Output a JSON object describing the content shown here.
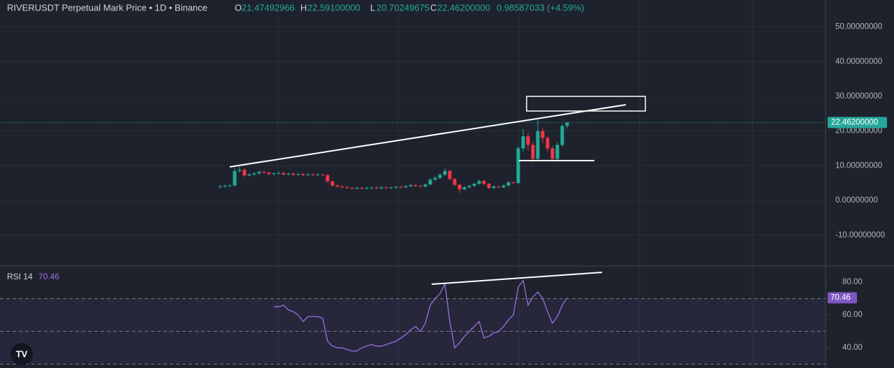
{
  "header": {
    "title": "RIVERUSDT Perpetual Mark Price • 1D • Binance",
    "o": "O",
    "open": "21.47492966",
    "h": "H",
    "high": "22.59100000",
    "l": "L",
    "low": "20.70249675",
    "c": "C",
    "close": "22.46200000",
    "change": "0.98587033 (+4.59%)"
  },
  "chart_data": [
    {
      "type": "candlestick",
      "open": [
        3.8,
        4.0,
        4.2,
        4.3,
        8.5,
        8.8,
        7.2,
        7.5,
        7.8,
        8.2,
        8.0,
        7.6,
        7.8,
        7.9,
        7.5,
        7.7,
        7.4,
        7.6,
        7.3,
        7.5,
        7.4,
        7.5,
        7.3,
        5.5,
        4.3,
        4.0,
        3.8,
        3.6,
        3.5,
        3.6,
        3.5,
        3.6,
        3.7,
        3.5,
        3.8,
        3.6,
        3.7,
        3.9,
        3.8,
        4.1,
        4.4,
        4.2,
        4.0,
        4.6,
        6.0,
        6.5,
        7.4,
        8.5,
        6.2,
        4.5,
        3.2,
        3.8,
        4.2,
        4.8,
        5.6,
        4.8,
        3.6,
        4.0,
        3.8,
        4.3,
        5.2,
        5.0,
        15.0,
        18.5,
        16.0,
        12.0,
        20.0,
        18.0,
        15.0,
        12.0,
        16.0,
        21.47
      ],
      "high": [
        4.4,
        4.6,
        4.7,
        9.5,
        10.0,
        9.3,
        7.9,
        8.2,
        8.7,
        8.5,
        8.3,
        8.1,
        8.3,
        8.2,
        8.0,
        8.0,
        7.9,
        7.9,
        7.8,
        7.8,
        7.8,
        7.7,
        7.6,
        5.8,
        4.6,
        4.3,
        4.1,
        3.9,
        3.9,
        3.9,
        3.9,
        4.0,
        4.0,
        4.1,
        4.1,
        4.0,
        4.2,
        4.2,
        4.4,
        4.7,
        4.7,
        4.5,
        4.9,
        6.4,
        7.0,
        7.9,
        9.2,
        8.8,
        6.5,
        4.8,
        4.1,
        4.5,
        5.1,
        6.0,
        5.9,
        5.0,
        4.3,
        4.2,
        4.6,
        5.6,
        5.5,
        15.6,
        20.5,
        19.5,
        17.0,
        23.3,
        21.0,
        18.6,
        15.8,
        16.8,
        22.0,
        22.59
      ],
      "low": [
        3.4,
        3.6,
        3.9,
        4.0,
        8.0,
        6.8,
        6.9,
        7.2,
        7.5,
        7.7,
        7.3,
        7.3,
        7.5,
        7.2,
        7.2,
        7.1,
        7.1,
        7.0,
        7.0,
        7.1,
        7.1,
        7.0,
        5.2,
        4.0,
        3.7,
        3.5,
        3.3,
        3.2,
        3.2,
        3.2,
        3.2,
        3.3,
        3.2,
        3.2,
        3.3,
        3.3,
        3.4,
        3.5,
        3.5,
        3.8,
        3.9,
        3.7,
        3.7,
        4.3,
        5.6,
        6.1,
        7.0,
        5.8,
        4.1,
        2.2,
        2.9,
        3.5,
        3.9,
        4.5,
        4.4,
        3.2,
        3.3,
        3.5,
        3.5,
        4.0,
        4.6,
        4.8,
        14.0,
        14.5,
        11.0,
        11.5,
        16.5,
        14.0,
        11.2,
        11.5,
        15.5,
        20.7
      ],
      "close": [
        4.0,
        4.2,
        4.3,
        8.5,
        8.8,
        7.2,
        7.5,
        7.8,
        8.2,
        8.0,
        7.6,
        7.8,
        7.9,
        7.5,
        7.7,
        7.4,
        7.6,
        7.3,
        7.5,
        7.4,
        7.5,
        7.3,
        5.5,
        4.3,
        4.0,
        3.8,
        3.6,
        3.5,
        3.6,
        3.5,
        3.6,
        3.7,
        3.5,
        3.8,
        3.6,
        3.7,
        3.9,
        3.8,
        4.1,
        4.4,
        4.2,
        4.0,
        4.6,
        6.0,
        6.5,
        7.4,
        8.5,
        6.2,
        4.5,
        3.2,
        3.8,
        4.2,
        4.8,
        5.6,
        4.8,
        3.6,
        4.0,
        3.8,
        4.3,
        5.2,
        5.0,
        15.0,
        18.5,
        16.0,
        12.0,
        20.0,
        18.0,
        15.0,
        12.0,
        16.0,
        21.47,
        22.462
      ],
      "last_label": "22.46200000",
      "up_color": "#22ab94",
      "down_color": "#f23645",
      "ylim": [
        -18.7,
        57.75
      ],
      "yticks": [
        {
          "value": 50,
          "label": "50.00000000"
        },
        {
          "value": 40,
          "label": "40.00000000"
        },
        {
          "value": 30,
          "label": "30.00000000"
        },
        {
          "value": 20,
          "label": "20.00000000"
        },
        {
          "value": 10,
          "label": "10.00000000"
        },
        {
          "value": 0,
          "label": "0.00000000"
        },
        {
          "value": -10,
          "label": "-10.00000000"
        }
      ],
      "grid": true
    },
    {
      "type": "line",
      "series": [
        {
          "name": "RSI 14",
          "color": "#9a6fe0",
          "values": [
            null,
            null,
            null,
            null,
            null,
            null,
            null,
            null,
            null,
            null,
            null,
            65,
            65,
            66,
            63,
            62,
            60,
            56,
            59,
            59,
            59,
            58,
            44,
            41,
            40,
            40,
            39,
            38,
            38,
            40,
            41,
            42,
            41,
            41,
            42,
            43,
            44,
            46,
            48,
            51,
            53,
            50,
            55,
            66,
            70,
            73,
            79,
            56,
            40,
            43,
            47,
            50,
            53,
            56,
            46,
            47,
            49,
            50,
            53,
            57,
            60,
            77,
            81,
            66,
            71,
            74,
            70,
            62,
            55,
            59,
            66,
            70.46
          ]
        }
      ],
      "ylim": [
        29.8,
        89.4
      ],
      "yticks": [
        {
          "value": 80,
          "label": "80.00"
        },
        {
          "value": 60,
          "label": "60.00"
        },
        {
          "value": 40,
          "label": "40.00"
        }
      ],
      "levels": [
        70,
        50,
        30
      ],
      "grid": true
    }
  ]
}
